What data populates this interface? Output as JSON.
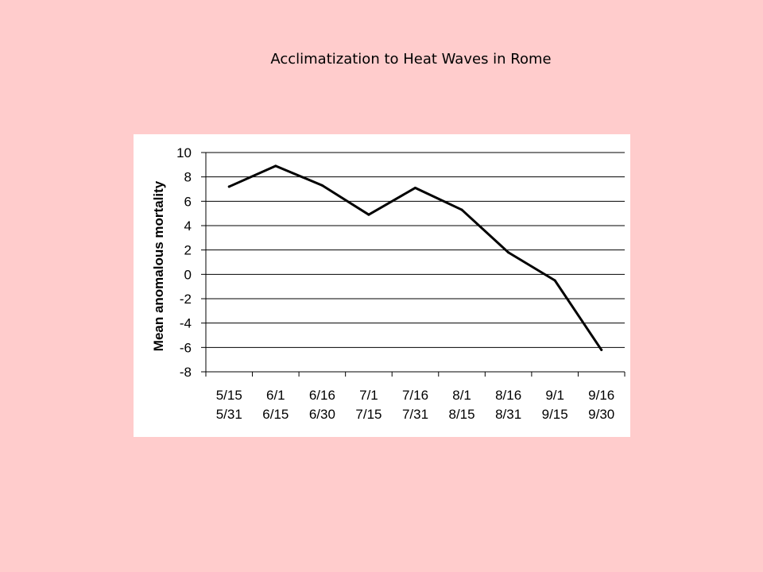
{
  "slide": {
    "title": "Acclimatization to Heat Waves in Rome",
    "background_color": "#FFCCCC",
    "panel_color": "#FFFFFF"
  },
  "chart_data": {
    "type": "line",
    "title": "",
    "xlabel": "",
    "ylabel": "Mean anomalous mortality",
    "categories": [
      [
        "5/15",
        "5/31"
      ],
      [
        "6/1",
        "6/15"
      ],
      [
        "6/16",
        "6/30"
      ],
      [
        "7/1",
        "7/15"
      ],
      [
        "7/16",
        "7/31"
      ],
      [
        "8/1",
        "8/15"
      ],
      [
        "8/16",
        "8/31"
      ],
      [
        "9/1",
        "9/15"
      ],
      [
        "9/16",
        "9/30"
      ]
    ],
    "series": [
      {
        "values": [
          7.2,
          8.9,
          7.3,
          4.9,
          7.1,
          5.3,
          1.8,
          -0.5,
          -6.2
        ],
        "color": "#000000"
      }
    ],
    "ylim": [
      -8,
      10
    ],
    "yticks": [
      10,
      8,
      6,
      4,
      2,
      0,
      -2,
      -4,
      -6,
      -8
    ],
    "grid": true,
    "legend": "none"
  }
}
